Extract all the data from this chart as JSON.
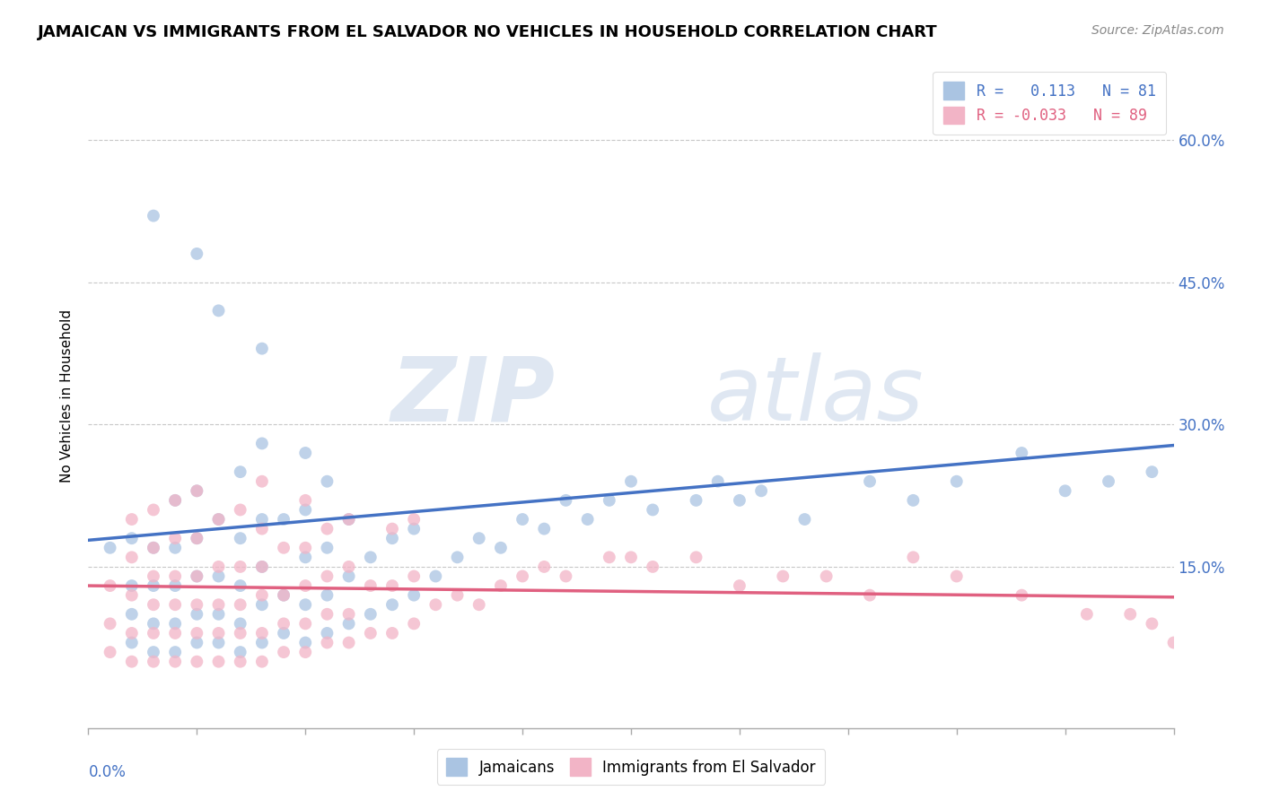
{
  "title": "JAMAICAN VS IMMIGRANTS FROM EL SALVADOR NO VEHICLES IN HOUSEHOLD CORRELATION CHART",
  "source": "Source: ZipAtlas.com",
  "ylabel": "No Vehicles in Household",
  "yticks": [
    0.0,
    0.15,
    0.3,
    0.45,
    0.6
  ],
  "ytick_labels": [
    "",
    "15.0%",
    "30.0%",
    "45.0%",
    "60.0%"
  ],
  "xmin": 0.0,
  "xmax": 0.5,
  "ymin": -0.02,
  "ymax": 0.68,
  "blue_line": [
    0.178,
    0.278
  ],
  "pink_line": [
    0.13,
    0.118
  ],
  "series": [
    {
      "label": "Jamaicans",
      "R": 0.113,
      "N": 81,
      "color": "#aac4e2",
      "line_color": "#4472c4",
      "x": [
        0.01,
        0.02,
        0.02,
        0.02,
        0.02,
        0.03,
        0.03,
        0.03,
        0.03,
        0.04,
        0.04,
        0.04,
        0.04,
        0.04,
        0.05,
        0.05,
        0.05,
        0.05,
        0.05,
        0.06,
        0.06,
        0.06,
        0.06,
        0.07,
        0.07,
        0.07,
        0.07,
        0.07,
        0.08,
        0.08,
        0.08,
        0.08,
        0.08,
        0.09,
        0.09,
        0.09,
        0.1,
        0.1,
        0.1,
        0.1,
        0.1,
        0.11,
        0.11,
        0.11,
        0.11,
        0.12,
        0.12,
        0.12,
        0.13,
        0.13,
        0.14,
        0.14,
        0.15,
        0.15,
        0.16,
        0.17,
        0.18,
        0.19,
        0.2,
        0.21,
        0.22,
        0.23,
        0.24,
        0.25,
        0.26,
        0.28,
        0.29,
        0.3,
        0.31,
        0.33,
        0.36,
        0.38,
        0.4,
        0.43,
        0.45,
        0.47,
        0.49,
        0.03,
        0.05,
        0.06,
        0.08
      ],
      "y": [
        0.17,
        0.07,
        0.1,
        0.13,
        0.18,
        0.06,
        0.09,
        0.13,
        0.17,
        0.06,
        0.09,
        0.13,
        0.17,
        0.22,
        0.07,
        0.1,
        0.14,
        0.18,
        0.23,
        0.07,
        0.1,
        0.14,
        0.2,
        0.06,
        0.09,
        0.13,
        0.18,
        0.25,
        0.07,
        0.11,
        0.15,
        0.2,
        0.28,
        0.08,
        0.12,
        0.2,
        0.07,
        0.11,
        0.16,
        0.21,
        0.27,
        0.08,
        0.12,
        0.17,
        0.24,
        0.09,
        0.14,
        0.2,
        0.1,
        0.16,
        0.11,
        0.18,
        0.12,
        0.19,
        0.14,
        0.16,
        0.18,
        0.17,
        0.2,
        0.19,
        0.22,
        0.2,
        0.22,
        0.24,
        0.21,
        0.22,
        0.24,
        0.22,
        0.23,
        0.2,
        0.24,
        0.22,
        0.24,
        0.27,
        0.23,
        0.24,
        0.25,
        0.52,
        0.48,
        0.42,
        0.38
      ]
    },
    {
      "label": "Immigrants from El Salvador",
      "R": -0.033,
      "N": 89,
      "color": "#f2b4c6",
      "line_color": "#e06080",
      "x": [
        0.01,
        0.01,
        0.01,
        0.02,
        0.02,
        0.02,
        0.02,
        0.02,
        0.03,
        0.03,
        0.03,
        0.03,
        0.03,
        0.03,
        0.04,
        0.04,
        0.04,
        0.04,
        0.04,
        0.04,
        0.05,
        0.05,
        0.05,
        0.05,
        0.05,
        0.05,
        0.06,
        0.06,
        0.06,
        0.06,
        0.06,
        0.07,
        0.07,
        0.07,
        0.07,
        0.07,
        0.08,
        0.08,
        0.08,
        0.08,
        0.08,
        0.08,
        0.09,
        0.09,
        0.09,
        0.09,
        0.1,
        0.1,
        0.1,
        0.1,
        0.1,
        0.11,
        0.11,
        0.11,
        0.11,
        0.12,
        0.12,
        0.12,
        0.12,
        0.13,
        0.13,
        0.14,
        0.14,
        0.14,
        0.15,
        0.15,
        0.15,
        0.16,
        0.17,
        0.18,
        0.19,
        0.2,
        0.21,
        0.22,
        0.24,
        0.25,
        0.26,
        0.28,
        0.3,
        0.32,
        0.34,
        0.36,
        0.38,
        0.4,
        0.43,
        0.46,
        0.48,
        0.49,
        0.5
      ],
      "y": [
        0.06,
        0.09,
        0.13,
        0.05,
        0.08,
        0.12,
        0.16,
        0.2,
        0.05,
        0.08,
        0.11,
        0.14,
        0.17,
        0.21,
        0.05,
        0.08,
        0.11,
        0.14,
        0.18,
        0.22,
        0.05,
        0.08,
        0.11,
        0.14,
        0.18,
        0.23,
        0.05,
        0.08,
        0.11,
        0.15,
        0.2,
        0.05,
        0.08,
        0.11,
        0.15,
        0.21,
        0.05,
        0.08,
        0.12,
        0.15,
        0.19,
        0.24,
        0.06,
        0.09,
        0.12,
        0.17,
        0.06,
        0.09,
        0.13,
        0.17,
        0.22,
        0.07,
        0.1,
        0.14,
        0.19,
        0.07,
        0.1,
        0.15,
        0.2,
        0.08,
        0.13,
        0.08,
        0.13,
        0.19,
        0.09,
        0.14,
        0.2,
        0.11,
        0.12,
        0.11,
        0.13,
        0.14,
        0.15,
        0.14,
        0.16,
        0.16,
        0.15,
        0.16,
        0.13,
        0.14,
        0.14,
        0.12,
        0.16,
        0.14,
        0.12,
        0.1,
        0.1,
        0.09,
        0.07
      ]
    }
  ],
  "watermark_zip": "ZIP",
  "watermark_atlas": "atlas",
  "background_color": "#ffffff",
  "grid_color": "#c8c8c8",
  "title_fontsize": 13,
  "source_fontsize": 10,
  "axis_label_fontsize": 11,
  "tick_fontsize": 12,
  "legend_fontsize": 12,
  "scatter_size": 100,
  "scatter_alpha": 0.75
}
